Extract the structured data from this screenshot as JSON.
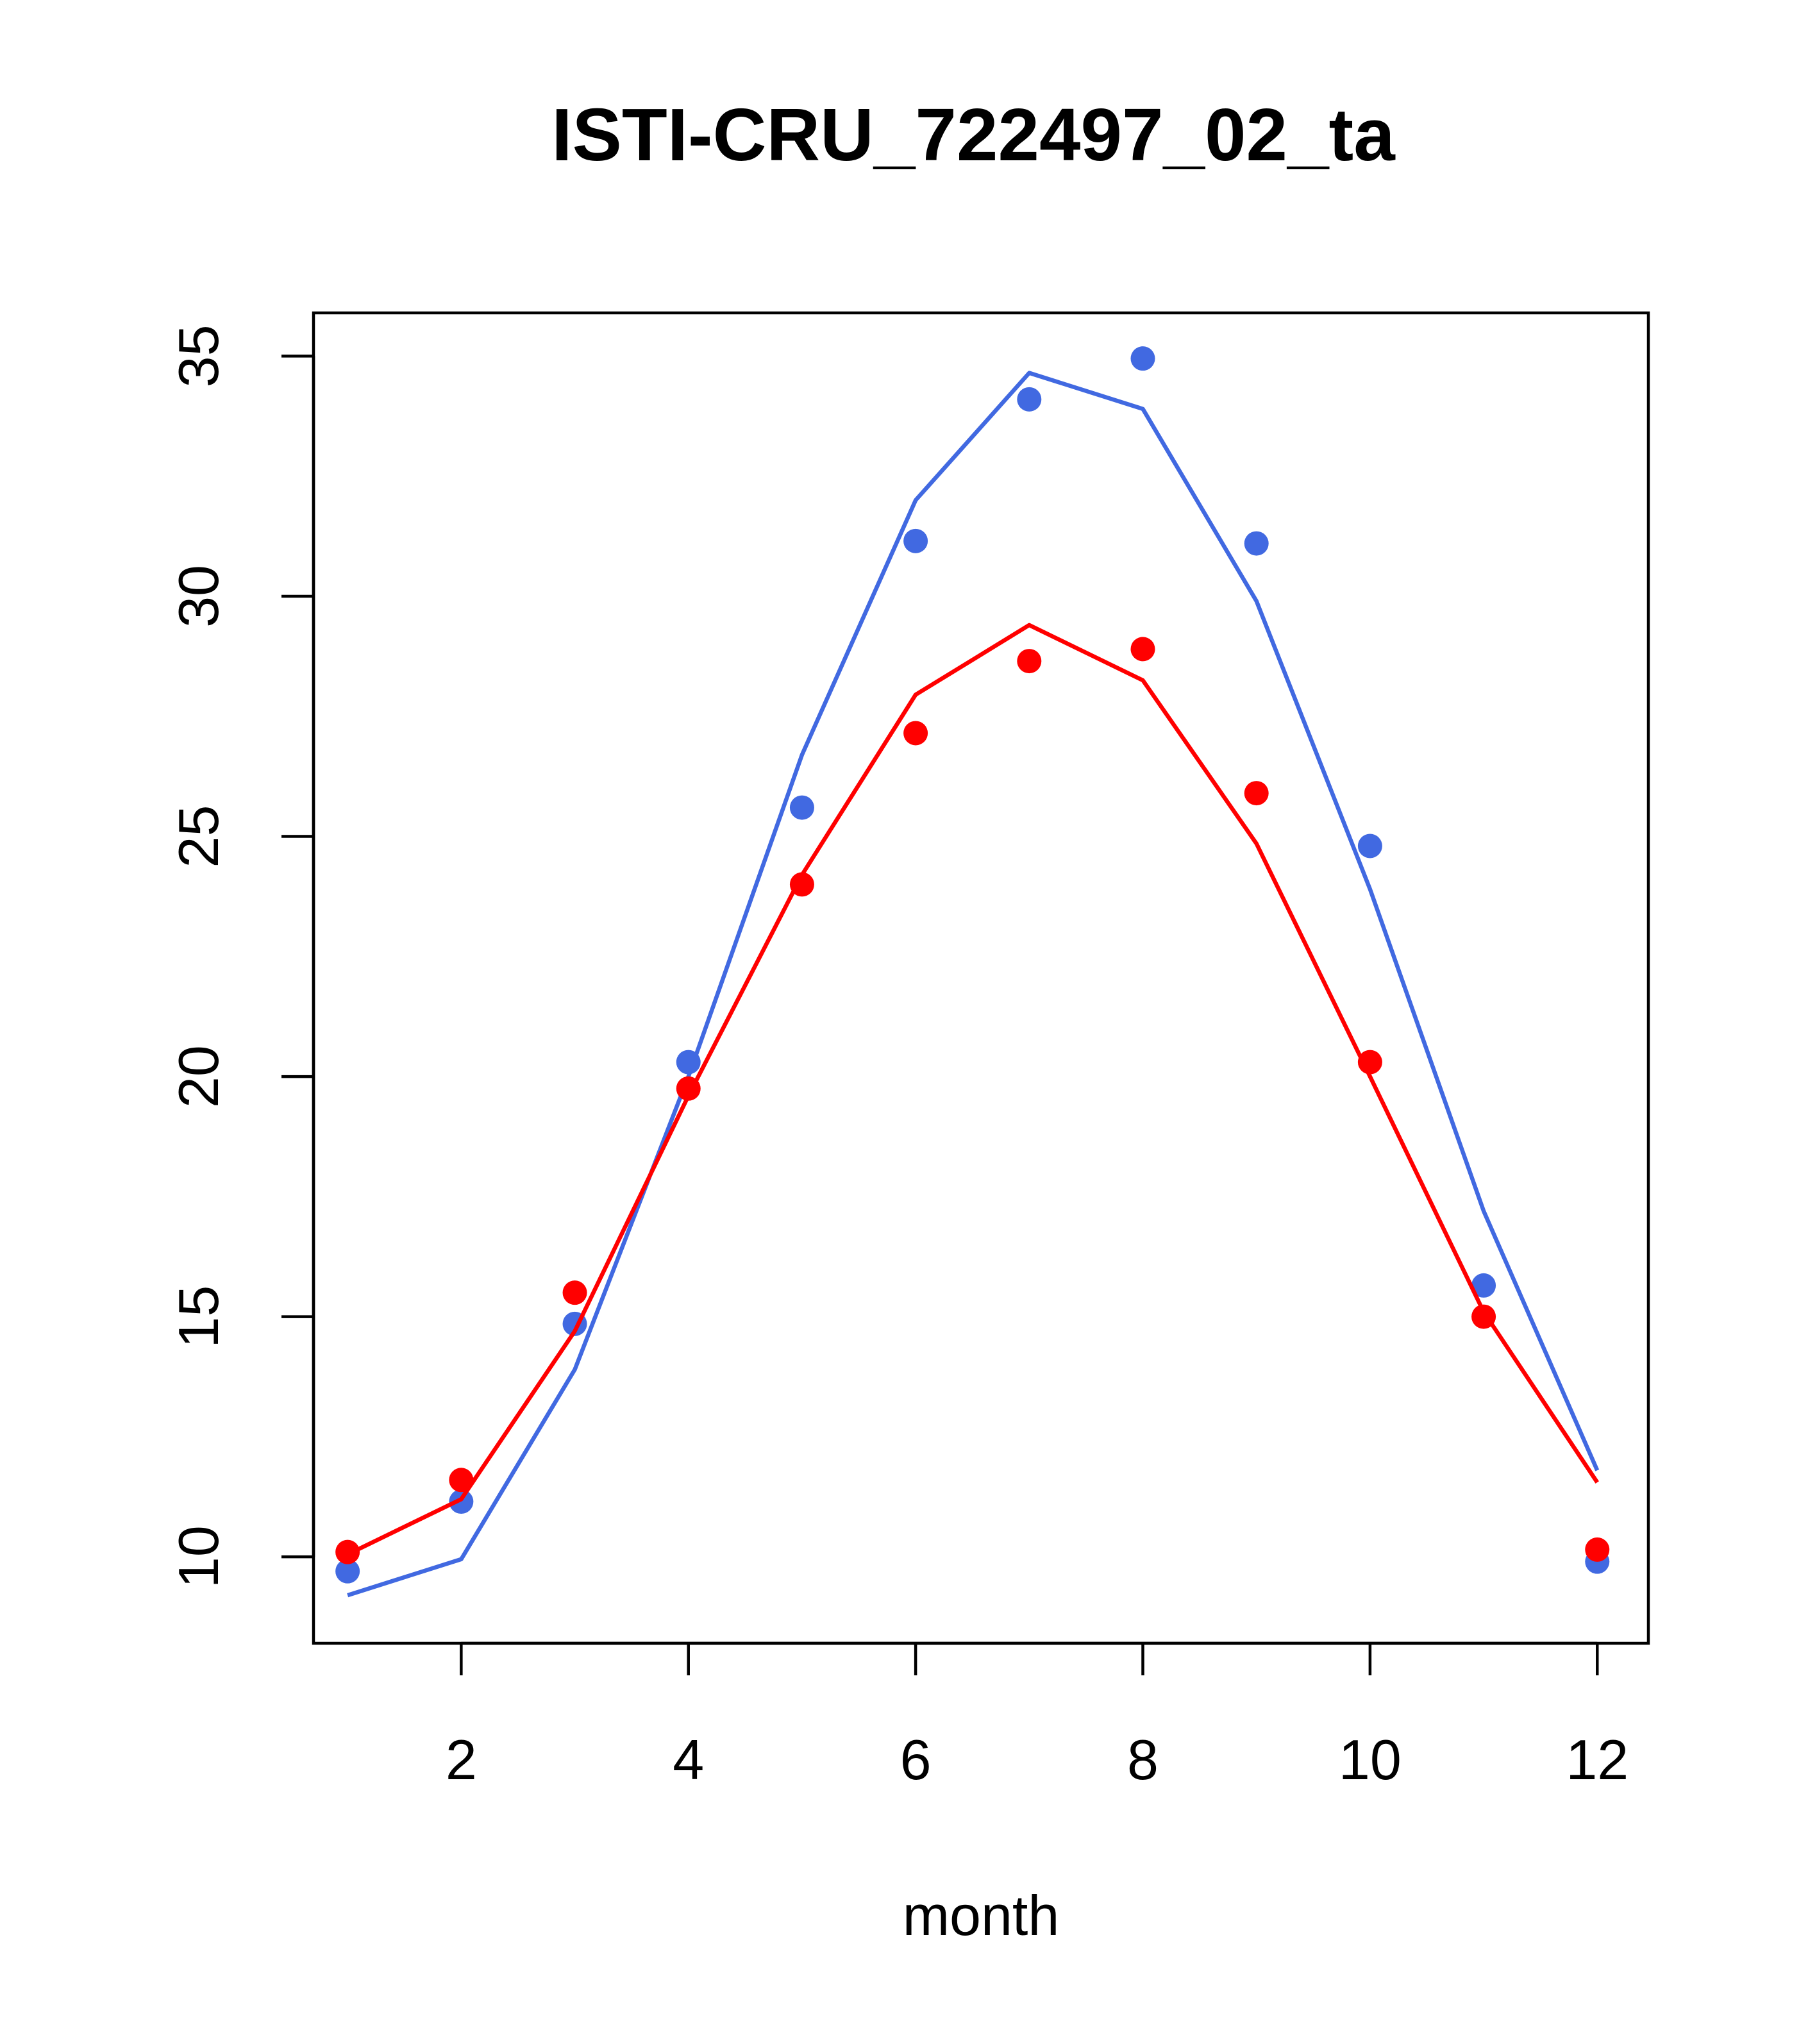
{
  "chart_data": {
    "type": "line",
    "title": "ISTI-CRU_722497_02_ta",
    "xlabel": "month",
    "ylabel": "",
    "xlim": [
      0.7,
      12.45
    ],
    "ylim": [
      8.2,
      35.9
    ],
    "x_ticks": [
      2,
      4,
      6,
      8,
      10,
      12
    ],
    "y_ticks": [
      10,
      15,
      20,
      25,
      30,
      35
    ],
    "grid": false,
    "legend": "none",
    "series": [
      {
        "color": "#4169E1",
        "line": {
          "x": [
            1,
            2,
            3,
            4,
            5,
            6,
            7,
            8,
            9,
            10,
            11,
            12
          ],
          "y": [
            9.2,
            9.95,
            13.9,
            20.0,
            26.7,
            32.0,
            34.65,
            33.9,
            29.9,
            23.9,
            17.2,
            11.8
          ]
        },
        "points": {
          "x": [
            1,
            2,
            3,
            4,
            5,
            6,
            7,
            8,
            9,
            10,
            11,
            12
          ],
          "y": [
            9.7,
            11.15,
            14.85,
            20.3,
            25.6,
            31.15,
            34.1,
            34.95,
            31.1,
            24.8,
            15.65,
            9.9
          ]
        }
      },
      {
        "color": "#FF0000",
        "line": {
          "x": [
            1,
            2,
            3,
            4,
            5,
            6,
            7,
            8,
            9,
            10,
            11,
            12
          ],
          "y": [
            10.05,
            11.2,
            14.7,
            19.6,
            24.2,
            27.95,
            29.4,
            28.25,
            24.85,
            20.0,
            15.1,
            11.55
          ]
        },
        "points": {
          "x": [
            1,
            2,
            3,
            4,
            5,
            6,
            7,
            8,
            9,
            10,
            11,
            12
          ],
          "y": [
            10.1,
            11.6,
            15.5,
            19.75,
            24.0,
            27.15,
            28.65,
            28.9,
            25.9,
            20.3,
            15.0,
            10.15
          ]
        }
      }
    ]
  }
}
